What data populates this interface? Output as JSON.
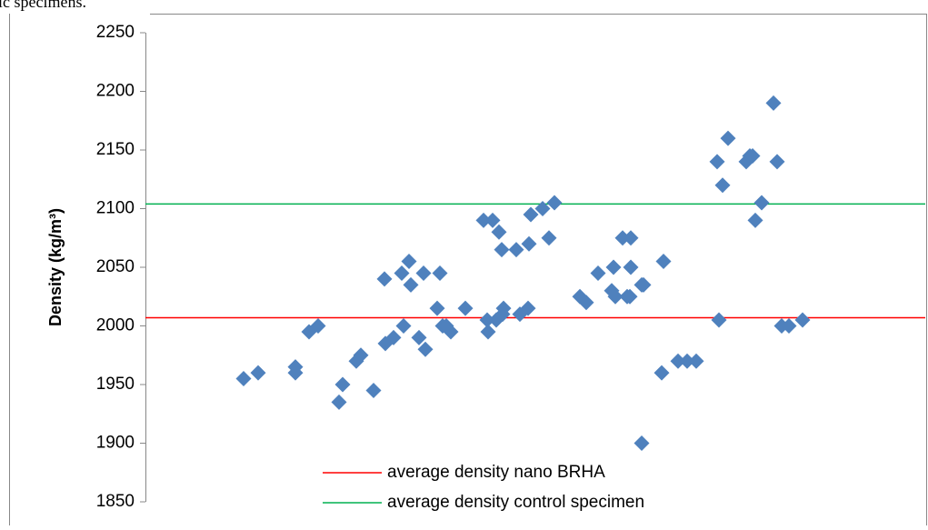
{
  "page_text": "ic specimens.",
  "chart_data": {
    "type": "scatter",
    "y_label": "Density (kg/m³)",
    "ylim": [
      1850,
      2250
    ],
    "yticks": [
      1850,
      1900,
      1950,
      2000,
      2050,
      2100,
      2150,
      2200,
      2250
    ],
    "xlim": [
      0,
      84
    ],
    "series": [
      {
        "color": "#4f81bd",
        "x": [
          10.8,
          12.4,
          16.5,
          16.5,
          18.0,
          19.0,
          21.3,
          21.7,
          23.2,
          23.7,
          25.1,
          26.3,
          26.4,
          27.3,
          28.2,
          28.4,
          29.0,
          29.2,
          30.1,
          30.6,
          30.8,
          32.1,
          32.4,
          32.7,
          33.1,
          33.6,
          35.2,
          37.2,
          37.6,
          37.7,
          38.2,
          38.6,
          38.9,
          39.2,
          39.3,
          39.4,
          40.8,
          41.2,
          42.1,
          42.2,
          42.4,
          43.7,
          44.4,
          45.0,
          47.8,
          48.5,
          49.8,
          51.3,
          51.5,
          51.7,
          52.5,
          53.0,
          53.4,
          53.4,
          53.3,
          54.6,
          54.8,
          54.6,
          56.8,
          57.0,
          58.6,
          59.6,
          60.6,
          62.9,
          63.1,
          63.5,
          64.1,
          66.1,
          66.5,
          66.8,
          67.1,
          67.8,
          69.1,
          69.5,
          70.0,
          70.8,
          72.3
        ],
        "values": [
          1955,
          1960,
          1960,
          1965,
          1995,
          2000,
          1935,
          1950,
          1970,
          1975,
          1945,
          2040,
          1985,
          1990,
          2045,
          2000,
          2055,
          2035,
          1990,
          2045,
          1980,
          2015,
          2045,
          2000,
          2000,
          1995,
          2015,
          2090,
          2005,
          1995,
          2090,
          2005,
          2080,
          2065,
          2010,
          2015,
          2065,
          2010,
          2015,
          2070,
          2095,
          2100,
          2075,
          2105,
          2025,
          2020,
          2045,
          2030,
          2050,
          2025,
          2075,
          2025,
          2075,
          2050,
          2025,
          2035,
          2035,
          1900,
          1960,
          2055,
          1970,
          1970,
          1970,
          2140,
          2005,
          2120,
          2160,
          2140,
          2145,
          2145,
          2090,
          2105,
          2190,
          2140,
          2000,
          2000,
          2005
        ]
      }
    ],
    "reference_lines": [
      {
        "name": "average density nano BRHA",
        "color": "#ff0000",
        "value": 2007
      },
      {
        "name": "average density control specimen",
        "color": "#00b050",
        "value": 2104
      }
    ]
  }
}
